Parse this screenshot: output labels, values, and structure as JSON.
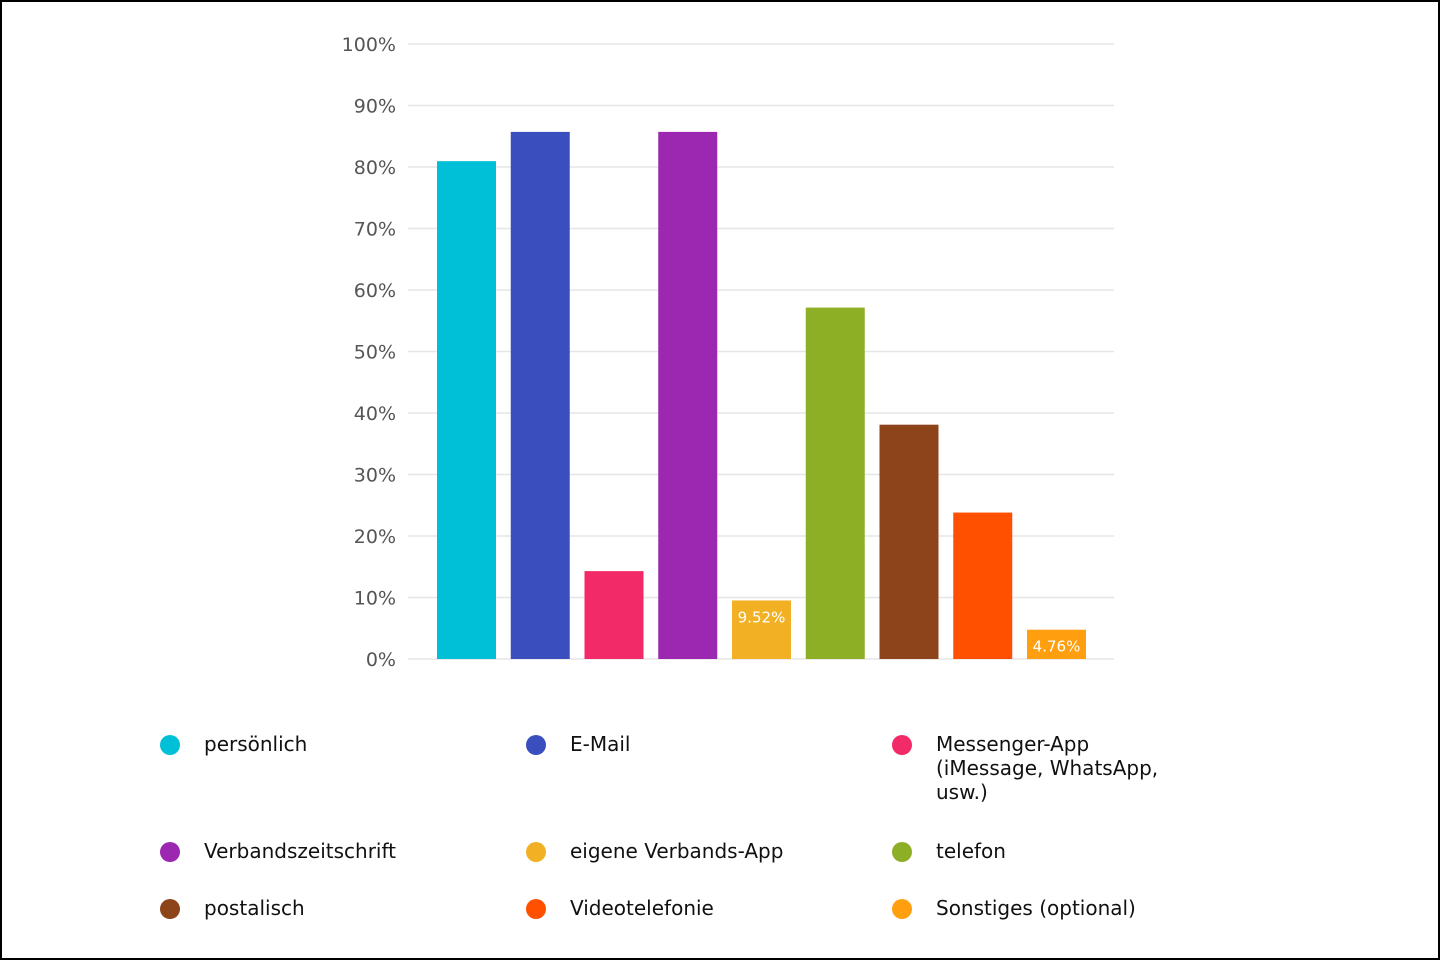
{
  "chart_data": {
    "type": "bar",
    "categories": [
      "persönlich",
      "E-Mail",
      "Messenger-App (iMessage, WhatsApp, usw.)",
      "Verbandszeitschrift",
      "eigene Verbands-App",
      "telefon",
      "postalisch",
      "Videotelefonie",
      "Sonstiges (optional)"
    ],
    "values": [
      80.95,
      85.71,
      14.29,
      85.71,
      9.52,
      57.14,
      38.1,
      23.81,
      4.76
    ],
    "colors": [
      "#00c0d8",
      "#3a4fbd",
      "#f22a67",
      "#9c27b0",
      "#f2b124",
      "#8daf26",
      "#8e441b",
      "#ff5000",
      "#ff9f0f"
    ],
    "data_labels": [
      "",
      "",
      "",
      "",
      "9.52%",
      "",
      "",
      "",
      "4.76%"
    ],
    "yticks": [
      "0%",
      "10%",
      "20%",
      "30%",
      "40%",
      "50%",
      "60%",
      "70%",
      "80%",
      "90%",
      "100%"
    ],
    "ylim": [
      0,
      100
    ],
    "title": "",
    "xlabel": "",
    "ylabel": "",
    "grid": true,
    "legend_position": "bottom"
  },
  "legend": {
    "items": [
      {
        "label": "persönlich",
        "color": "#00c0d8"
      },
      {
        "label": "E-Mail",
        "color": "#3a4fbd"
      },
      {
        "label": "Messenger-App (iMessage, WhatsApp, usw.)",
        "color": "#f22a67"
      },
      {
        "label": "Verbandszeitschrift",
        "color": "#9c27b0"
      },
      {
        "label": "eigene Verbands-App",
        "color": "#f2b124"
      },
      {
        "label": "telefon",
        "color": "#8daf26"
      },
      {
        "label": "postalisch",
        "color": "#8e441b"
      },
      {
        "label": "Videotelefonie",
        "color": "#ff5000"
      },
      {
        "label": "Sonstiges (optional)",
        "color": "#ff9f0f"
      }
    ]
  }
}
